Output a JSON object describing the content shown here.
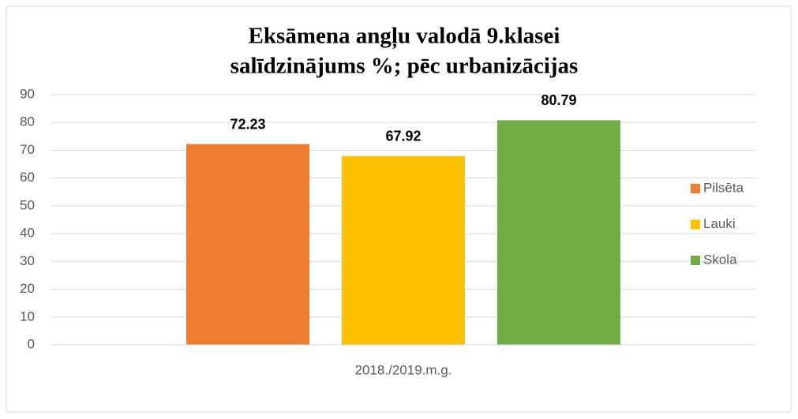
{
  "chart_data": {
    "type": "bar",
    "title": [
      "Eksāmena angļu valodā 9.klasei",
      "salīdzinājums %; pēc urbanizācijas"
    ],
    "categories": [
      "2018./2019.m.g."
    ],
    "series": [
      {
        "name": "Pilsēta",
        "color": "#ed7d31",
        "values": [
          72.23
        ]
      },
      {
        "name": "Lauki",
        "color": "#ffc000",
        "values": [
          67.92
        ]
      },
      {
        "name": "Skola",
        "color": "#70ad47",
        "values": [
          80.79
        ]
      }
    ],
    "ylim": [
      0,
      90
    ],
    "yticks": [
      0,
      10,
      20,
      30,
      40,
      50,
      60,
      70,
      80,
      90
    ],
    "grid": true,
    "legend": "right"
  }
}
